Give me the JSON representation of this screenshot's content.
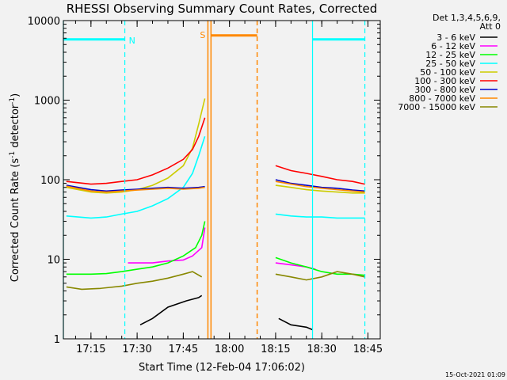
{
  "chart_data": {
    "type": "line",
    "title": "RHESSI Observing Summary Count Rates, Corrected",
    "xlabel": "Start Time (12-Feb-04 17:06:02)",
    "ylabel_main": "Corrected Count Rate (s",
    "ylabel_sup1": "-1",
    "ylabel_mid": " detector",
    "ylabel_sup2": "-1",
    "ylabel_end": ")",
    "y_scale": "log",
    "ylim": [
      1,
      10000
    ],
    "xlim": [
      "17:06:02",
      "18:49:00"
    ],
    "x_ticks": [
      "17:15",
      "17:30",
      "17:45",
      "18:00",
      "18:15",
      "18:30",
      "18:45"
    ],
    "y_ticks": [
      "1",
      "10",
      "100",
      "1000",
      "10000"
    ],
    "legend": {
      "placement": "outside-right",
      "header": [
        "Det 1,3,4,5,6,9,",
        "Att 0"
      ],
      "entries": [
        {
          "label": "3 - 6 keV",
          "color": "#000000"
        },
        {
          "label": "6 - 12 keV",
          "color": "#ff00ff"
        },
        {
          "label": "12 - 25 keV",
          "color": "#00ff00"
        },
        {
          "label": "25 - 50 keV",
          "color": "#00ffff"
        },
        {
          "label": "50 - 100 keV",
          "color": "#cccc00"
        },
        {
          "label": "100 - 300 keV",
          "color": "#ff0000"
        },
        {
          "label": "300 - 800 keV",
          "color": "#0000cc"
        },
        {
          "label": "800 - 7000 keV",
          "color": "#ff8800"
        },
        {
          "label": "7000 - 15000 keV",
          "color": "#888800"
        }
      ]
    },
    "annotations": {
      "night_label": "N",
      "saa_label": "S",
      "night_color": "#00ffff",
      "saa_color": "#ff8800"
    },
    "series": [
      {
        "name": "3 - 6 keV",
        "color": "#000000",
        "segments": [
          [
            [
              "17:31",
              1.5
            ],
            [
              "17:35",
              1.8
            ],
            [
              "17:40",
              2.5
            ],
            [
              "17:46",
              3
            ],
            [
              "17:50",
              3.3
            ],
            [
              "17:51",
              3.5
            ]
          ],
          [
            [
              "18:16",
              1.8
            ],
            [
              "18:20",
              1.5
            ],
            [
              "18:25",
              1.4
            ],
            [
              "18:27",
              1.3
            ]
          ]
        ]
      },
      {
        "name": "6 - 12 keV",
        "color": "#ff00ff",
        "segments": [
          [
            [
              "17:27",
              9
            ],
            [
              "17:35",
              9
            ],
            [
              "17:40",
              9.5
            ],
            [
              "17:45",
              9.8
            ],
            [
              "17:48",
              11
            ],
            [
              "17:51",
              14
            ],
            [
              "17:52",
              25
            ]
          ],
          [
            [
              "18:15",
              9
            ],
            [
              "18:20",
              8.5
            ],
            [
              "18:25",
              8
            ],
            [
              "18:28",
              7.5
            ]
          ]
        ]
      },
      {
        "name": "12 - 25 keV",
        "color": "#00ff00",
        "segments": [
          [
            [
              "17:07",
              6.5
            ],
            [
              "17:15",
              6.5
            ],
            [
              "17:20",
              6.6
            ],
            [
              "17:25",
              7
            ],
            [
              "17:30",
              7.5
            ],
            [
              "17:35",
              8
            ],
            [
              "17:40",
              9
            ],
            [
              "17:45",
              11
            ],
            [
              "17:49",
              14
            ],
            [
              "17:51",
              20
            ],
            [
              "17:52",
              30
            ]
          ],
          [
            [
              "18:15",
              10.5
            ],
            [
              "18:20",
              9
            ],
            [
              "18:25",
              8
            ],
            [
              "18:30",
              7
            ],
            [
              "18:35",
              6.5
            ],
            [
              "18:40",
              6.5
            ],
            [
              "18:44",
              6.3
            ]
          ]
        ]
      },
      {
        "name": "25 - 50 keV",
        "color": "#00ffff",
        "segments": [
          [
            [
              "17:07",
              35
            ],
            [
              "17:15",
              33
            ],
            [
              "17:20",
              34
            ],
            [
              "17:25",
              37
            ],
            [
              "17:30",
              40
            ],
            [
              "17:35",
              47
            ],
            [
              "17:40",
              58
            ],
            [
              "17:45",
              80
            ],
            [
              "17:48",
              120
            ],
            [
              "17:50",
              200
            ],
            [
              "17:52",
              350
            ]
          ],
          [
            [
              "18:15",
              37
            ],
            [
              "18:20",
              35
            ],
            [
              "18:25",
              34
            ],
            [
              "18:30",
              34
            ],
            [
              "18:35",
              33
            ],
            [
              "18:40",
              33
            ],
            [
              "18:44",
              33
            ]
          ]
        ]
      },
      {
        "name": "50 - 100 keV",
        "color": "#cccc00",
        "segments": [
          [
            [
              "17:07",
              80
            ],
            [
              "17:15",
              70
            ],
            [
              "17:20",
              68
            ],
            [
              "17:25",
              70
            ],
            [
              "17:30",
              75
            ],
            [
              "17:35",
              85
            ],
            [
              "17:40",
              105
            ],
            [
              "17:45",
              150
            ],
            [
              "17:48",
              250
            ],
            [
              "17:50",
              500
            ],
            [
              "17:52",
              1050
            ]
          ],
          [
            [
              "18:15",
              85
            ],
            [
              "18:20",
              80
            ],
            [
              "18:25",
              75
            ],
            [
              "18:30",
              72
            ],
            [
              "18:35",
              70
            ],
            [
              "18:40",
              68
            ],
            [
              "18:44",
              68
            ]
          ]
        ]
      },
      {
        "name": "100 - 300 keV",
        "color": "#ff0000",
        "segments": [
          [
            [
              "17:07",
              95
            ],
            [
              "17:15",
              88
            ],
            [
              "17:20",
              90
            ],
            [
              "17:25",
              95
            ],
            [
              "17:30",
              100
            ],
            [
              "17:35",
              115
            ],
            [
              "17:40",
              140
            ],
            [
              "17:45",
              180
            ],
            [
              "17:48",
              240
            ],
            [
              "17:50",
              350
            ],
            [
              "17:52",
              600
            ]
          ],
          [
            [
              "18:15",
              150
            ],
            [
              "18:20",
              130
            ],
            [
              "18:25",
              120
            ],
            [
              "18:30",
              110
            ],
            [
              "18:35",
              100
            ],
            [
              "18:40",
              95
            ],
            [
              "18:44",
              88
            ]
          ]
        ]
      },
      {
        "name": "300 - 800 keV",
        "color": "#0000cc",
        "segments": [
          [
            [
              "17:07",
              85
            ],
            [
              "17:15",
              75
            ],
            [
              "17:20",
              72
            ],
            [
              "17:25",
              74
            ],
            [
              "17:30",
              76
            ],
            [
              "17:35",
              78
            ],
            [
              "17:40",
              80
            ],
            [
              "17:45",
              78
            ],
            [
              "17:50",
              80
            ],
            [
              "17:52",
              82
            ]
          ],
          [
            [
              "18:15",
              100
            ],
            [
              "18:20",
              90
            ],
            [
              "18:25",
              85
            ],
            [
              "18:30",
              80
            ],
            [
              "18:35",
              78
            ],
            [
              "18:40",
              74
            ],
            [
              "18:44",
              72
            ]
          ]
        ]
      },
      {
        "name": "800 - 7000 keV",
        "color": "#ff8800",
        "segments": [
          [
            [
              "17:07",
              83
            ],
            [
              "17:15",
              72
            ],
            [
              "17:20",
              70
            ],
            [
              "17:25",
              72
            ],
            [
              "17:30",
              74
            ],
            [
              "17:35",
              76
            ],
            [
              "17:40",
              78
            ],
            [
              "17:45",
              76
            ],
            [
              "17:50",
              78
            ],
            [
              "17:52",
              80
            ]
          ],
          [
            [
              "18:15",
              95
            ],
            [
              "18:20",
              88
            ],
            [
              "18:25",
              82
            ],
            [
              "18:30",
              78
            ],
            [
              "18:35",
              75
            ],
            [
              "18:40",
              72
            ],
            [
              "18:44",
              70
            ]
          ]
        ]
      },
      {
        "name": "7000 - 15000 keV",
        "color": "#888800",
        "segments": [
          [
            [
              "17:07",
              4.5
            ],
            [
              "17:12",
              4.2
            ],
            [
              "17:18",
              4.3
            ],
            [
              "17:25",
              4.6
            ],
            [
              "17:30",
              5
            ],
            [
              "17:35",
              5.3
            ],
            [
              "17:40",
              5.8
            ],
            [
              "17:45",
              6.5
            ],
            [
              "17:48",
              7
            ],
            [
              "17:51",
              6
            ]
          ],
          [
            [
              "18:15",
              6.5
            ],
            [
              "18:20",
              6
            ],
            [
              "18:25",
              5.5
            ],
            [
              "18:30",
              6
            ],
            [
              "18:35",
              7
            ],
            [
              "18:40",
              6.5
            ],
            [
              "18:44",
              6
            ]
          ]
        ]
      }
    ],
    "night_intervals": [
      [
        "17:06:02",
        "17:26"
      ],
      [
        "18:27",
        "18:44"
      ]
    ],
    "saa_interval": [
      "17:54",
      "18:09"
    ],
    "markers": {
      "cyan_vertical": [
        "17:06:02",
        "17:26",
        "18:27",
        "18:44"
      ],
      "orange_vertical": [
        "17:53",
        "17:54",
        "18:09"
      ]
    }
  },
  "footer": {
    "timestamp": "15-Oct-2021 01:09"
  }
}
